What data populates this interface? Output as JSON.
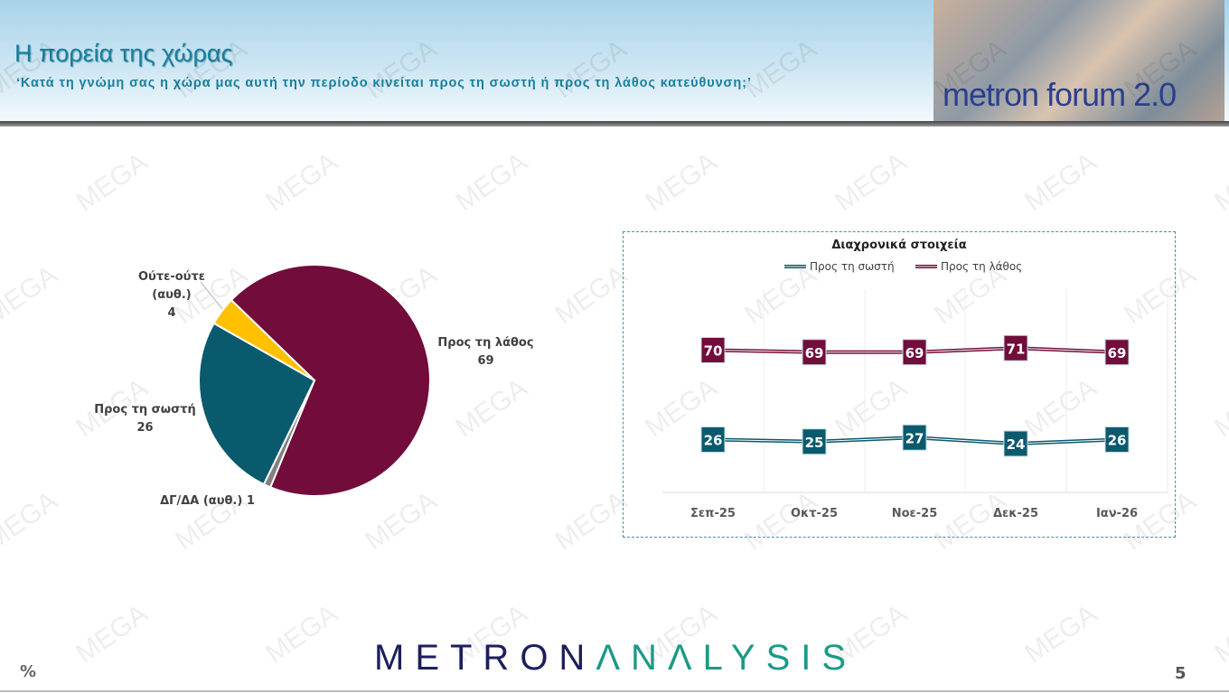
{
  "header": {
    "title": "Η πορεία της χώρας",
    "subtitle": "‘Κατά τη γνώμη σας η χώρα μας αυτή την περίοδο κινείται προς τη σωστή ή προς τη λάθος κατεύθυνση;’",
    "logo_text": "metron forum 2.0"
  },
  "watermark": "MEGA",
  "chart_data": [
    {
      "type": "pie",
      "slices": [
        {
          "label": "Προς τη λάθος",
          "value": 69,
          "color": "#720c3a"
        },
        {
          "label": "ΔΓ/ΔΑ (αυθ.)",
          "value": 1,
          "color": "#808080"
        },
        {
          "label": "Προς τη σωστή",
          "value": 26,
          "color": "#0a5a6e"
        },
        {
          "label": "Ούτε-ούτε (αυθ.)",
          "value": 4,
          "color": "#ffc000"
        }
      ],
      "labels": {
        "wrong_name": "Προς τη λάθος",
        "wrong_value": "69",
        "right_name": "Προς τη σωστή",
        "right_value": "26",
        "dk": "ΔΓ/ΔΑ (αυθ.) 1",
        "neither_name1": "Ούτε-ούτε",
        "neither_name2": "(αυθ.)",
        "neither_value": "4"
      }
    },
    {
      "type": "line",
      "title": "Διαχρονικά στοιχεία",
      "categories": [
        "Σεπ-25",
        "Οκτ-25",
        "Νοε-25",
        "Δεκ-25",
        "Ιαν-26"
      ],
      "series": [
        {
          "name": "Προς τη σωστή",
          "values": [
            26,
            25,
            27,
            24,
            26
          ],
          "color": "#0a5a6e"
        },
        {
          "name": "Προς τη λάθος",
          "values": [
            70,
            69,
            69,
            71,
            69
          ],
          "color": "#720c3a"
        }
      ],
      "ylim": [
        0,
        100
      ],
      "legend": "top",
      "grid": "vertical"
    }
  ],
  "footer": {
    "brand_part1": "METRON",
    "brand_part2": "ΛNΛLYSIS",
    "brand_color1": "#1c1f5e",
    "brand_color2": "#1a9a86",
    "unit": "%",
    "page": "5"
  }
}
